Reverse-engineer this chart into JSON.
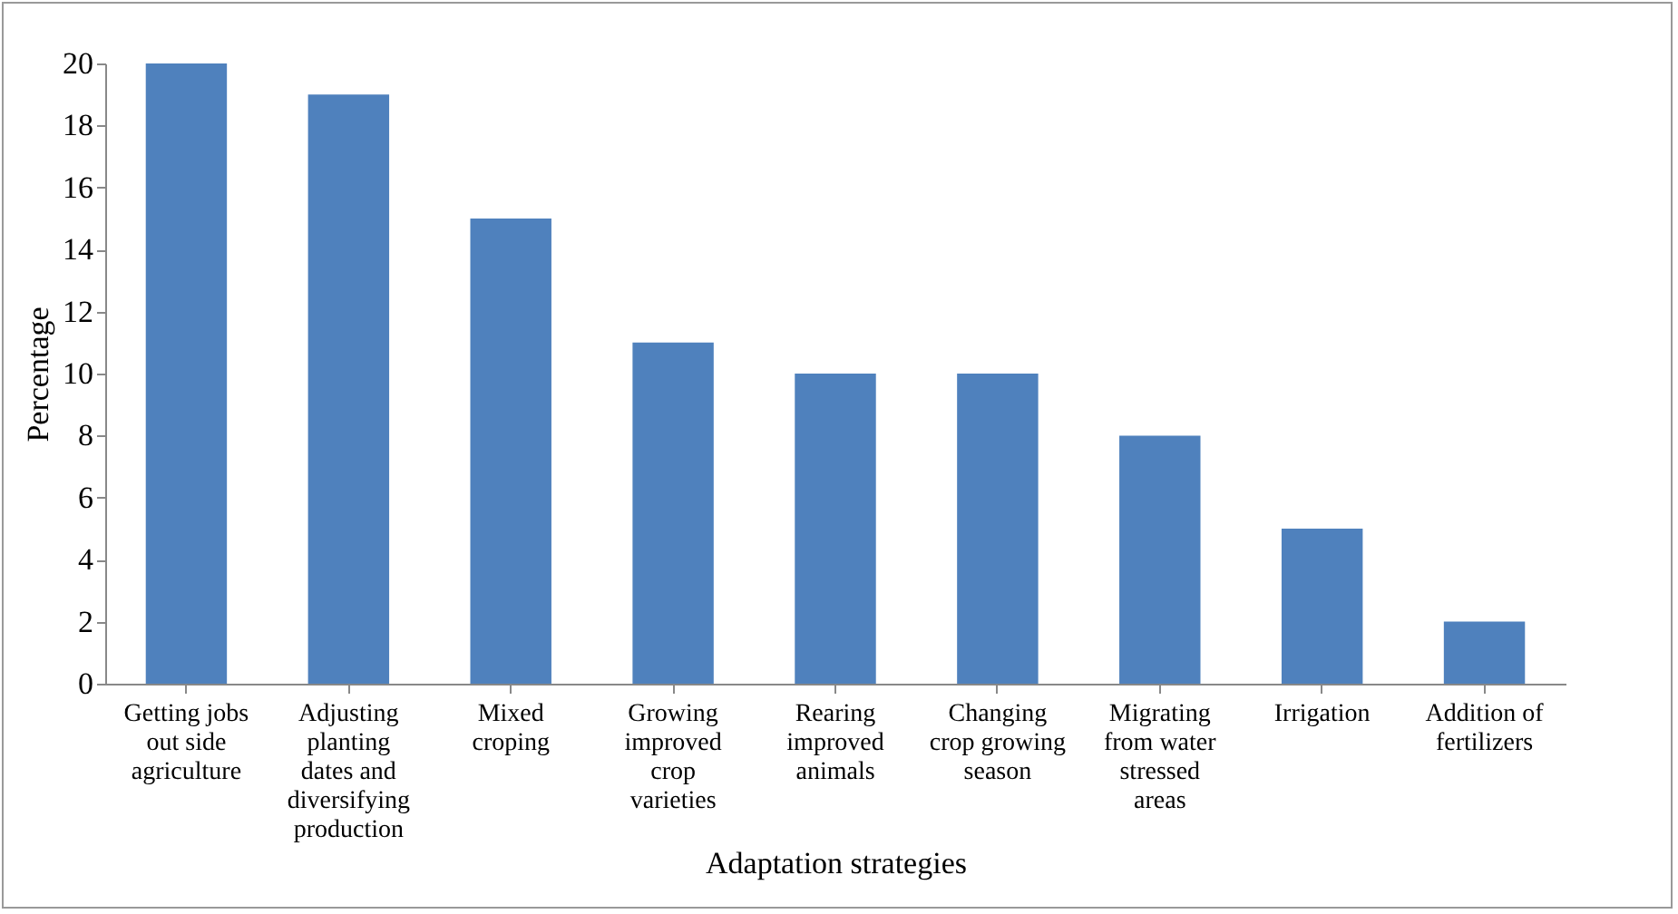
{
  "chart_data": {
    "type": "bar",
    "xlabel": "Adaptation strategies",
    "ylabel": "Percentage",
    "categories": [
      "Getting jobs out side agriculture",
      "Adjusting planting dates and diversifying production",
      "Mixed croping",
      "Growing improved crop varieties",
      "Rearing improved animals",
      "Changing crop growing season",
      "Migrating from water stressed areas",
      "Irrigation",
      "Addition of fertilizers"
    ],
    "values": [
      20,
      19,
      15,
      11,
      10,
      10,
      8,
      5,
      2
    ],
    "color": "#4f81bd",
    "ylim": [
      0,
      20
    ],
    "yticks": [
      0,
      2,
      4,
      6,
      8,
      10,
      12,
      14,
      16,
      18,
      20
    ],
    "grid": false
  }
}
